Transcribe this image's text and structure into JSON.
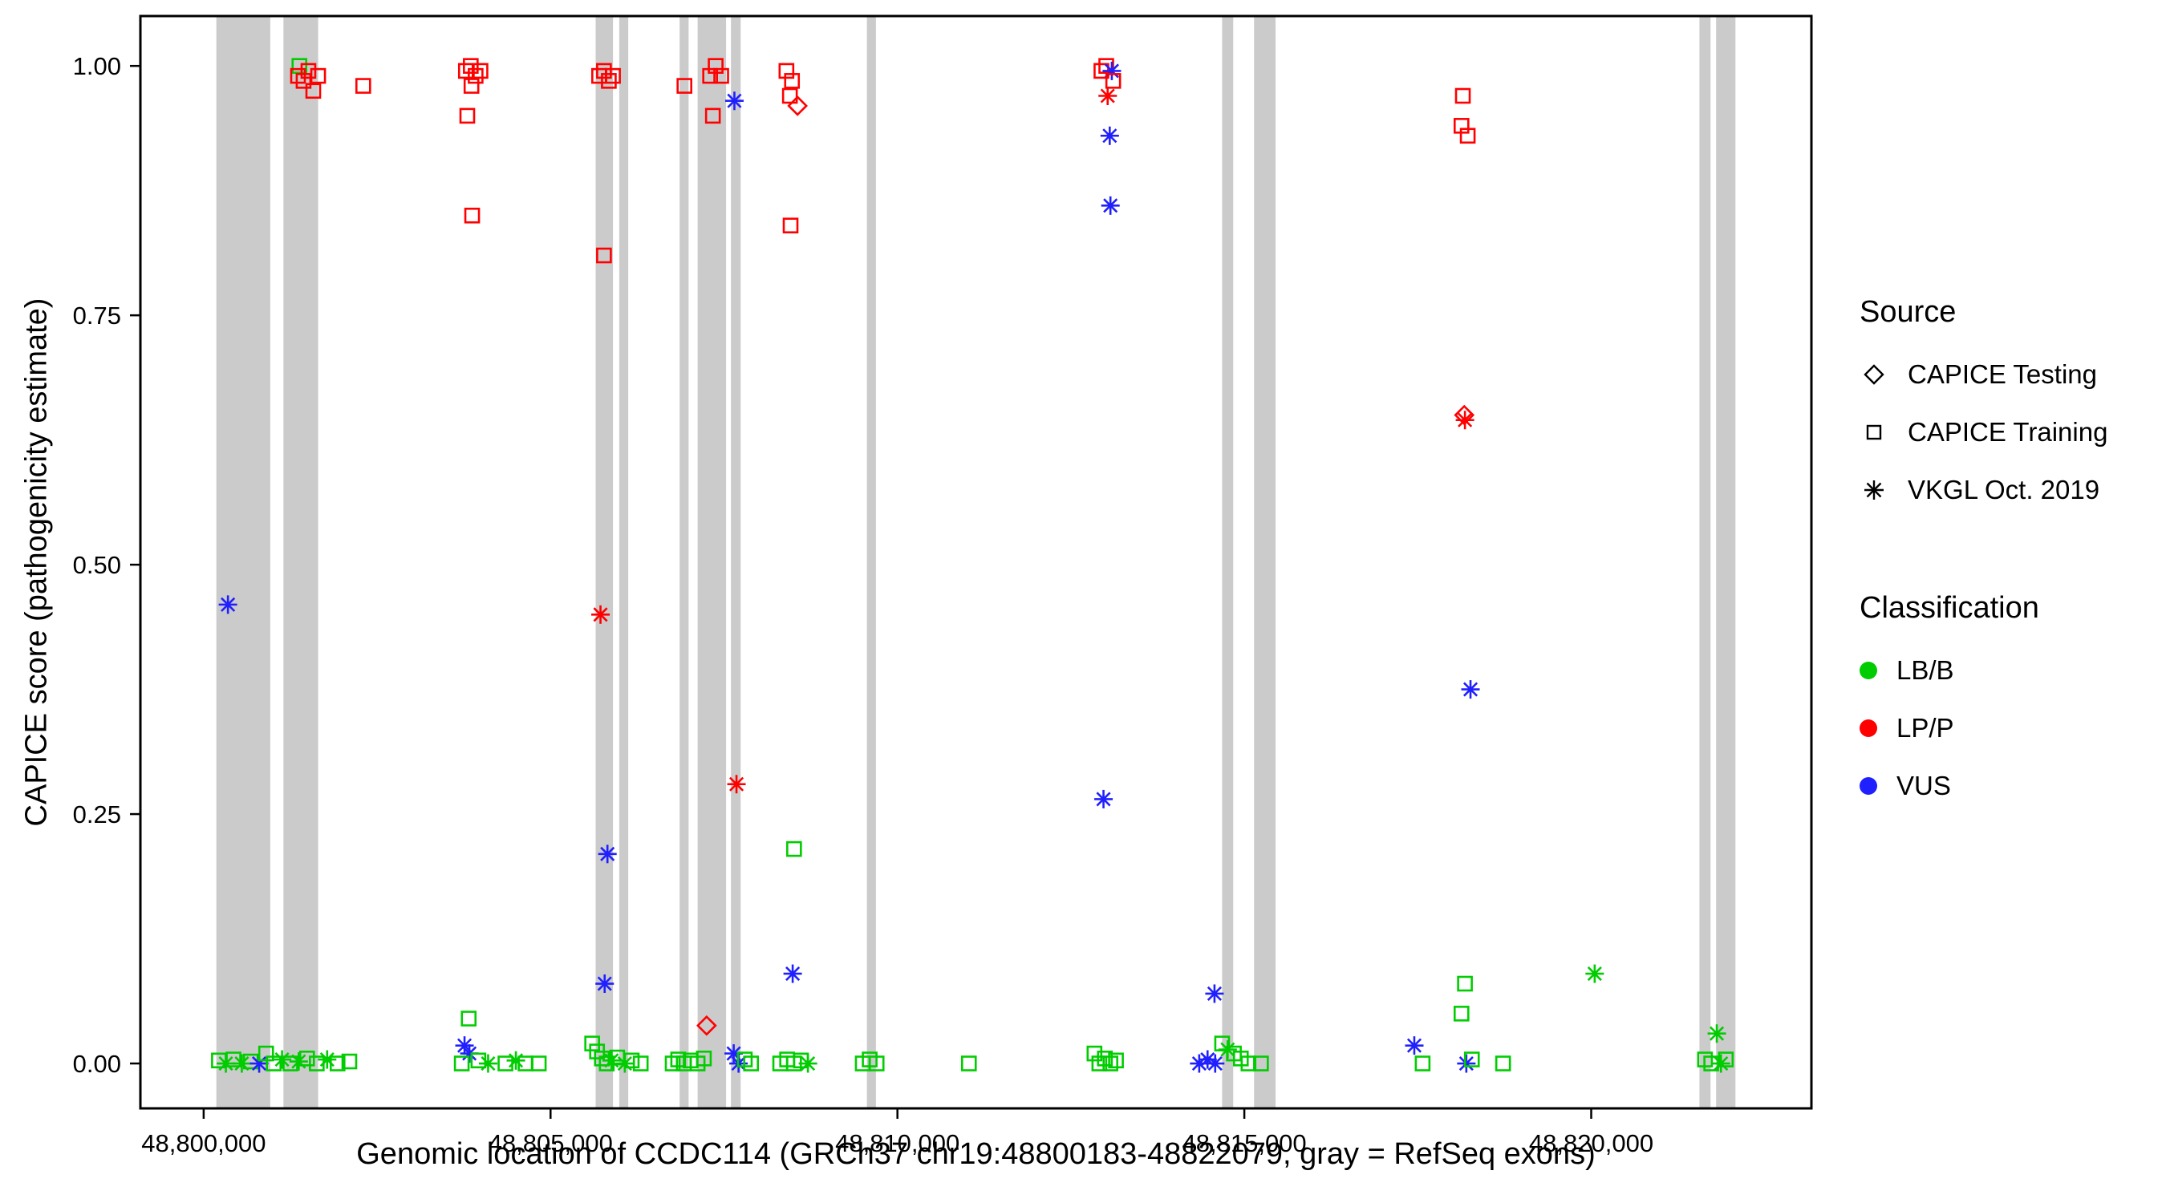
{
  "chart_data": {
    "type": "scatter",
    "title": "",
    "xlabel": "Genomic location of CCDC114 (GRCh37 chr19:48800183-48822079, gray = RefSeq exons)",
    "ylabel": "CAPICE score (pathogenicity estimate)",
    "xlim": [
      48799088,
      48823174
    ],
    "ylim": [
      -0.045,
      1.05
    ],
    "grid": false,
    "panel_border_color": "#000000",
    "exon_color": "#CBCBCB",
    "x_ticks": [
      {
        "value": 48800000,
        "label": "48,800,000"
      },
      {
        "value": 48805000,
        "label": "48,805,000"
      },
      {
        "value": 48810000,
        "label": "48,810,000"
      },
      {
        "value": 48815000,
        "label": "48,815,000"
      },
      {
        "value": 48820000,
        "label": "48,820,000"
      }
    ],
    "y_ticks": [
      {
        "value": 0.0,
        "label": "0.00"
      },
      {
        "value": 0.25,
        "label": "0.25"
      },
      {
        "value": 0.5,
        "label": "0.50"
      },
      {
        "value": 0.75,
        "label": "0.75"
      },
      {
        "value": 1.0,
        "label": "1.00"
      }
    ],
    "exons": [
      [
        48800183,
        48800960
      ],
      [
        48801150,
        48801650
      ],
      [
        48805650,
        48805900
      ],
      [
        48805990,
        48806120
      ],
      [
        48806860,
        48806990
      ],
      [
        48807120,
        48807530
      ],
      [
        48807600,
        48807740
      ],
      [
        48809560,
        48809690
      ],
      [
        48814680,
        48814840
      ],
      [
        48815140,
        48815450
      ],
      [
        48821560,
        48821720
      ],
      [
        48821800,
        48822079
      ]
    ],
    "encoding": {
      "point_format": [
        "x_genomic_position",
        "capice_score",
        "source_code",
        "classification_code"
      ],
      "source_codes": {
        "d": "CAPICE Testing",
        "s": "CAPICE Training",
        "a": "VKGL Oct. 2019"
      },
      "source_shapes": {
        "d": "open-diamond",
        "s": "open-square",
        "a": "asterisk"
      },
      "class_codes": {
        "g": "LB/B",
        "r": "LP/P",
        "b": "VUS"
      },
      "class_colors": {
        "g": "#00CD00",
        "r": "#FF0000",
        "b": "#2020FF"
      }
    },
    "points": [
      [
        48800350,
        0.46,
        "a",
        "b"
      ],
      [
        48801380,
        1.0,
        "s",
        "g"
      ],
      [
        48801360,
        0.99,
        "s",
        "r"
      ],
      [
        48801440,
        0.985,
        "s",
        "r"
      ],
      [
        48801510,
        0.995,
        "s",
        "r"
      ],
      [
        48801580,
        0.975,
        "s",
        "r"
      ],
      [
        48801650,
        0.99,
        "s",
        "r"
      ],
      [
        48802300,
        0.98,
        "s",
        "r"
      ],
      [
        48800220,
        0.003,
        "s",
        "g"
      ],
      [
        48800320,
        0,
        "a",
        "g"
      ],
      [
        48800430,
        0.004,
        "s",
        "g"
      ],
      [
        48800550,
        0,
        "a",
        "g"
      ],
      [
        48800680,
        0.002,
        "s",
        "g"
      ],
      [
        48800800,
        0,
        "a",
        "b"
      ],
      [
        48800900,
        0.01,
        "s",
        "g"
      ],
      [
        48801010,
        0,
        "s",
        "g"
      ],
      [
        48801130,
        0.004,
        "a",
        "g"
      ],
      [
        48801250,
        0,
        "s",
        "g"
      ],
      [
        48801370,
        0.002,
        "a",
        "g"
      ],
      [
        48801490,
        0.005,
        "s",
        "g"
      ],
      [
        48801630,
        0,
        "s",
        "g"
      ],
      [
        48801780,
        0.004,
        "a",
        "g"
      ],
      [
        48801930,
        0,
        "s",
        "g"
      ],
      [
        48802100,
        0.002,
        "s",
        "g"
      ],
      [
        48803780,
        0.995,
        "s",
        "r"
      ],
      [
        48803850,
        1.0,
        "s",
        "r"
      ],
      [
        48803920,
        0.99,
        "s",
        "r"
      ],
      [
        48803990,
        0.995,
        "s",
        "r"
      ],
      [
        48803860,
        0.98,
        "s",
        "r"
      ],
      [
        48803800,
        0.95,
        "s",
        "r"
      ],
      [
        48803870,
        0.85,
        "s",
        "r"
      ],
      [
        48803820,
        0.045,
        "s",
        "g"
      ],
      [
        48803760,
        0.018,
        "a",
        "b"
      ],
      [
        48803830,
        0.01,
        "a",
        "b"
      ],
      [
        48803720,
        0,
        "s",
        "g"
      ],
      [
        48803960,
        0.003,
        "s",
        "g"
      ],
      [
        48804100,
        0,
        "a",
        "g"
      ],
      [
        48804350,
        0,
        "s",
        "g"
      ],
      [
        48804500,
        0.003,
        "a",
        "g"
      ],
      [
        48804640,
        0,
        "s",
        "g"
      ],
      [
        48804830,
        0,
        "s",
        "g"
      ],
      [
        48805700,
        0.99,
        "s",
        "r"
      ],
      [
        48805770,
        0.995,
        "s",
        "r"
      ],
      [
        48805840,
        0.985,
        "s",
        "r"
      ],
      [
        48805900,
        0.99,
        "s",
        "r"
      ],
      [
        48805770,
        0.81,
        "s",
        "r"
      ],
      [
        48805720,
        0.45,
        "a",
        "r"
      ],
      [
        48805820,
        0.21,
        "a",
        "b"
      ],
      [
        48805780,
        0.08,
        "a",
        "b"
      ],
      [
        48805600,
        0.02,
        "s",
        "g"
      ],
      [
        48805670,
        0.012,
        "s",
        "g"
      ],
      [
        48805740,
        0.005,
        "s",
        "g"
      ],
      [
        48805810,
        0,
        "s",
        "g"
      ],
      [
        48805880,
        0.003,
        "a",
        "g"
      ],
      [
        48805960,
        0.006,
        "s",
        "g"
      ],
      [
        48806070,
        0,
        "a",
        "g"
      ],
      [
        48806170,
        0.003,
        "s",
        "g"
      ],
      [
        48806300,
        0,
        "s",
        "g"
      ],
      [
        48806930,
        0.98,
        "s",
        "r"
      ],
      [
        48807300,
        0.99,
        "s",
        "r"
      ],
      [
        48807380,
        1.0,
        "s",
        "r"
      ],
      [
        48807460,
        0.99,
        "s",
        "r"
      ],
      [
        48807340,
        0.95,
        "s",
        "r"
      ],
      [
        48807650,
        0.965,
        "a",
        "b"
      ],
      [
        48807680,
        0.28,
        "a",
        "r"
      ],
      [
        48807250,
        0.038,
        "d",
        "r"
      ],
      [
        48806760,
        0,
        "s",
        "g"
      ],
      [
        48806840,
        0.004,
        "s",
        "g"
      ],
      [
        48806920,
        0,
        "s",
        "g"
      ],
      [
        48807020,
        0.003,
        "s",
        "g"
      ],
      [
        48807120,
        0,
        "s",
        "g"
      ],
      [
        48807210,
        0.005,
        "s",
        "g"
      ],
      [
        48807640,
        0.01,
        "a",
        "b"
      ],
      [
        48807710,
        0,
        "a",
        "b"
      ],
      [
        48807800,
        0.004,
        "s",
        "g"
      ],
      [
        48807890,
        0,
        "s",
        "g"
      ],
      [
        48808400,
        0.995,
        "s",
        "r"
      ],
      [
        48808480,
        0.985,
        "s",
        "r"
      ],
      [
        48808450,
        0.97,
        "s",
        "r"
      ],
      [
        48808560,
        0.96,
        "d",
        "r"
      ],
      [
        48808460,
        0.84,
        "s",
        "r"
      ],
      [
        48808510,
        0.215,
        "s",
        "g"
      ],
      [
        48808490,
        0.09,
        "a",
        "b"
      ],
      [
        48808310,
        0,
        "s",
        "g"
      ],
      [
        48808410,
        0.004,
        "s",
        "g"
      ],
      [
        48808510,
        0,
        "s",
        "g"
      ],
      [
        48808610,
        0.003,
        "s",
        "g"
      ],
      [
        48808710,
        0,
        "a",
        "g"
      ],
      [
        48809500,
        0,
        "s",
        "g"
      ],
      [
        48809600,
        0.004,
        "s",
        "g"
      ],
      [
        48809700,
        0,
        "s",
        "g"
      ],
      [
        48811030,
        0,
        "s",
        "g"
      ],
      [
        48812940,
        0.995,
        "s",
        "r"
      ],
      [
        48813010,
        1.0,
        "s",
        "r"
      ],
      [
        48813090,
        0.995,
        "a",
        "b"
      ],
      [
        48813030,
        0.97,
        "a",
        "r"
      ],
      [
        48813110,
        0.985,
        "s",
        "r"
      ],
      [
        48813060,
        0.93,
        "a",
        "b"
      ],
      [
        48813070,
        0.86,
        "a",
        "b"
      ],
      [
        48812970,
        0.265,
        "a",
        "b"
      ],
      [
        48812840,
        0.01,
        "s",
        "g"
      ],
      [
        48812910,
        0,
        "s",
        "g"
      ],
      [
        48812990,
        0.005,
        "s",
        "g"
      ],
      [
        48813070,
        0,
        "s",
        "g"
      ],
      [
        48813150,
        0.003,
        "s",
        "g"
      ],
      [
        48814570,
        0.07,
        "a",
        "b"
      ],
      [
        48814350,
        0,
        "a",
        "b"
      ],
      [
        48814470,
        0.004,
        "a",
        "b"
      ],
      [
        48814580,
        0,
        "a",
        "b"
      ],
      [
        48814680,
        0.02,
        "s",
        "g"
      ],
      [
        48814760,
        0.014,
        "a",
        "g"
      ],
      [
        48814850,
        0.01,
        "s",
        "g"
      ],
      [
        48814950,
        0.005,
        "s",
        "g"
      ],
      [
        48815060,
        0,
        "s",
        "g"
      ],
      [
        48815240,
        0,
        "s",
        "g"
      ],
      [
        48817450,
        0.018,
        "a",
        "b"
      ],
      [
        48817570,
        0,
        "s",
        "g"
      ],
      [
        48818150,
        0.97,
        "s",
        "r"
      ],
      [
        48818130,
        0.94,
        "s",
        "r"
      ],
      [
        48818220,
        0.93,
        "s",
        "r"
      ],
      [
        48818170,
        0.65,
        "d",
        "r"
      ],
      [
        48818180,
        0.645,
        "a",
        "r"
      ],
      [
        48818260,
        0.375,
        "a",
        "b"
      ],
      [
        48818180,
        0.08,
        "s",
        "g"
      ],
      [
        48818130,
        0.05,
        "s",
        "g"
      ],
      [
        48818200,
        0,
        "a",
        "b"
      ],
      [
        48818280,
        0.004,
        "s",
        "g"
      ],
      [
        48818730,
        0,
        "s",
        "g"
      ],
      [
        48820050,
        0.09,
        "a",
        "g"
      ],
      [
        48821810,
        0.03,
        "a",
        "g"
      ],
      [
        48821640,
        0.004,
        "s",
        "g"
      ],
      [
        48821730,
        0,
        "s",
        "g"
      ],
      [
        48821870,
        0,
        "a",
        "g"
      ],
      [
        48821940,
        0.004,
        "s",
        "g"
      ]
    ]
  },
  "legend": {
    "source": {
      "title": "Source",
      "items": [
        {
          "label": "CAPICE Testing",
          "shape": "open-diamond"
        },
        {
          "label": "CAPICE Training",
          "shape": "open-square"
        },
        {
          "label": "VKGL Oct. 2019",
          "shape": "asterisk"
        }
      ]
    },
    "classification": {
      "title": "Classification",
      "items": [
        {
          "label": "LB/B",
          "color": "#00CD00"
        },
        {
          "label": "LP/P",
          "color": "#FF0000"
        },
        {
          "label": "VUS",
          "color": "#2020FF"
        }
      ]
    }
  }
}
